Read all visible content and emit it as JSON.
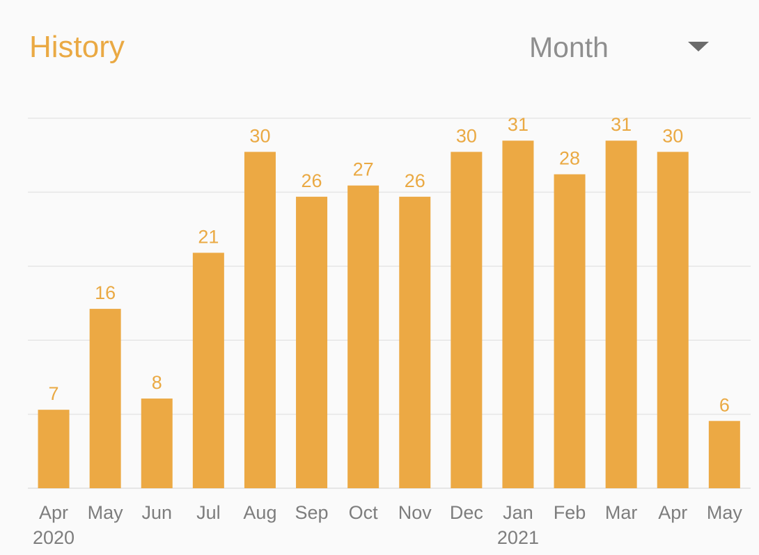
{
  "header": {
    "title": "History",
    "period_select": "Month"
  },
  "colors": {
    "accent": "#eaa943",
    "bar": "#eca944",
    "grid": "#e6e6e6",
    "tick_text": "#7d7d7d"
  },
  "icons": {
    "dropdown": "chevron-down-icon"
  },
  "chart_data": {
    "type": "bar",
    "categories": [
      "Apr",
      "May",
      "Jun",
      "Jul",
      "Aug",
      "Sep",
      "Oct",
      "Nov",
      "Dec",
      "Jan",
      "Feb",
      "Mar",
      "Apr",
      "May"
    ],
    "year_labels": [
      "2020",
      "",
      "",
      "",
      "",
      "",
      "",
      "",
      "",
      "2021",
      "",
      "",
      "",
      ""
    ],
    "values": [
      7,
      16,
      8,
      21,
      30,
      26,
      27,
      26,
      30,
      31,
      28,
      31,
      30,
      6
    ],
    "ylim": [
      0,
      33
    ],
    "grid": true,
    "gridlines": [
      0,
      6.6,
      13.2,
      19.8,
      26.4,
      33
    ]
  }
}
